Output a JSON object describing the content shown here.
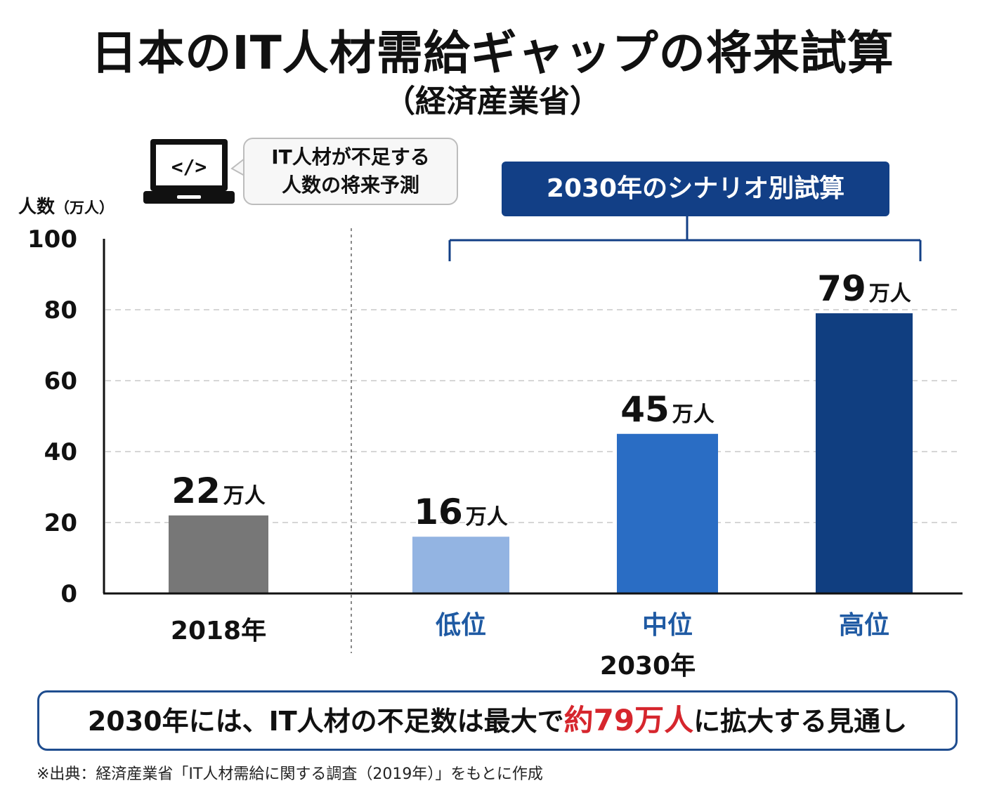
{
  "header": {
    "title": "日本のIT人材需給ギャップの将来試算",
    "subtitle": "（経済産業省）"
  },
  "callout": {
    "icon": "laptop-code-icon",
    "line1": "IT人材が不足する",
    "line2": "人数の将来予測"
  },
  "scenario_badge": "2030年のシナリオ別試算",
  "summary": {
    "prefix": "2030年には、IT人材の不足数は最大で",
    "highlight": "約79万人",
    "suffix": "に拡大する見通し"
  },
  "source_note": "※出典：経済産業省「IT人材需給に関する調査（2019年）」をもとに作成",
  "colors": {
    "bar_2018": "#777777",
    "bar_low": "#93b4e2",
    "bar_mid": "#2a6dc4",
    "bar_high": "#103e80",
    "badge": "#123f86",
    "highlight": "#d6262d",
    "category_scenario": "#1f5aa3"
  },
  "chart_data": {
    "type": "bar",
    "ylabel": "人数",
    "ylabel_unit": "（万人）",
    "ylim": [
      0,
      100
    ],
    "yticks": [
      "0",
      "20",
      "40",
      "60",
      "80",
      "100"
    ],
    "grid": true,
    "categories": [
      "2018年",
      "低位",
      "中位",
      "高位"
    ],
    "group_label": "2030年",
    "values": [
      22,
      16,
      45,
      79
    ],
    "value_labels": [
      "22",
      "16",
      "45",
      "79"
    ],
    "value_unit": "万人"
  }
}
